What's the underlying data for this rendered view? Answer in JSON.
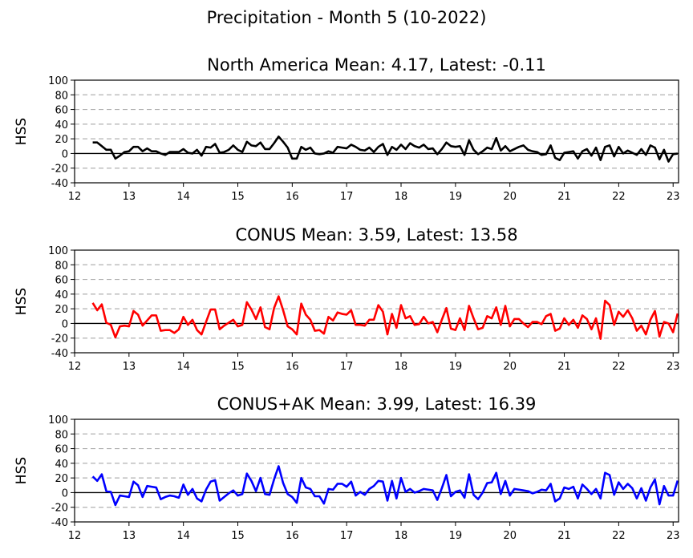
{
  "figure": {
    "title": "Precipitation - Month 5 (10-2022)"
  },
  "chart_data": [
    {
      "type": "line",
      "title": "North America Mean: 4.17, Latest: -0.11",
      "ylabel": "HSS",
      "xlabel": "",
      "xlim": [
        12,
        23.1
      ],
      "ylim": [
        -40,
        100
      ],
      "xticks": [
        "12",
        "13",
        "14",
        "15",
        "16",
        "17",
        "18",
        "19",
        "20",
        "21",
        "22",
        "23"
      ],
      "yticks": [
        "-40",
        "-20",
        "0",
        "20",
        "40",
        "60",
        "80",
        "100"
      ],
      "grid": "horizontal dashed",
      "zero_line": true,
      "color": "#000000",
      "series": [
        {
          "x_start": 12.333,
          "x_step": 0.08333,
          "values": [
            15,
            15,
            10,
            5,
            5,
            -7,
            -3,
            2,
            3,
            9,
            9,
            3,
            7,
            3,
            3,
            0,
            -2,
            2,
            2,
            2,
            6,
            1,
            0,
            5,
            -3,
            9,
            8,
            13,
            1,
            2,
            5,
            11,
            5,
            2,
            16,
            11,
            10,
            15,
            6,
            6,
            14,
            23,
            16,
            8,
            -7,
            -7,
            9,
            5,
            8,
            0,
            -1,
            0,
            3,
            1,
            9,
            8,
            7,
            12,
            9,
            5,
            4,
            8,
            2,
            9,
            13,
            -2,
            9,
            5,
            12,
            6,
            14,
            10,
            8,
            12,
            6,
            7,
            -1,
            6,
            15,
            10,
            9,
            10,
            -2,
            18,
            5,
            -1,
            3,
            8,
            6,
            21,
            4,
            10,
            3,
            6,
            9,
            11,
            5,
            3,
            2,
            -2,
            -1,
            11,
            -6,
            -9,
            1,
            2,
            3,
            -7,
            3,
            6,
            -3,
            8,
            -9,
            9,
            11,
            -4,
            9,
            0,
            4,
            1,
            -2,
            6,
            -2,
            11,
            8,
            -8,
            5,
            -11,
            -1,
            -0.11
          ]
        }
      ]
    },
    {
      "type": "line",
      "title": "CONUS Mean: 3.59, Latest: 13.58",
      "ylabel": "HSS",
      "xlabel": "",
      "xlim": [
        12,
        23.1
      ],
      "ylim": [
        -40,
        100
      ],
      "xticks": [
        "12",
        "13",
        "14",
        "15",
        "16",
        "17",
        "18",
        "19",
        "20",
        "21",
        "22",
        "23"
      ],
      "yticks": [
        "-40",
        "-20",
        "0",
        "20",
        "40",
        "60",
        "80",
        "100"
      ],
      "grid": "horizontal dashed",
      "zero_line": true,
      "color": "#ff0000",
      "series": [
        {
          "x_start": 12.333,
          "x_step": 0.08333,
          "values": [
            28,
            18,
            26,
            1,
            -2,
            -19,
            -4,
            -3,
            -4,
            17,
            12,
            -3,
            4,
            11,
            11,
            -10,
            -9,
            -9,
            -13,
            -8,
            9,
            -2,
            5,
            -9,
            -15,
            2,
            19,
            19,
            -8,
            -3,
            1,
            5,
            -4,
            -2,
            29,
            19,
            6,
            22,
            -5,
            -8,
            21,
            37,
            18,
            -4,
            -8,
            -15,
            27,
            12,
            5,
            -10,
            -9,
            -14,
            9,
            4,
            15,
            13,
            12,
            18,
            -2,
            -2,
            -3,
            5,
            5,
            25,
            16,
            -15,
            13,
            -6,
            25,
            7,
            10,
            -2,
            -1,
            9,
            0,
            2,
            -12,
            5,
            21,
            -7,
            -9,
            7,
            -9,
            24,
            7,
            -8,
            -6,
            10,
            7,
            22,
            -2,
            24,
            -4,
            6,
            6,
            0,
            -5,
            2,
            2,
            -1,
            10,
            13,
            -10,
            -7,
            7,
            -2,
            5,
            -6,
            11,
            6,
            -8,
            7,
            -21,
            31,
            25,
            -2,
            16,
            9,
            18,
            7,
            -10,
            -3,
            -15,
            5,
            17,
            -18,
            2,
            0,
            -12,
            13.58
          ]
        }
      ]
    },
    {
      "type": "line",
      "title": "CONUS+AK Mean: 3.99, Latest: 16.39",
      "ylabel": "HSS",
      "xlabel": "",
      "xlim": [
        12,
        23.1
      ],
      "ylim": [
        -40,
        100
      ],
      "xticks": [
        "12",
        "13",
        "14",
        "15",
        "16",
        "17",
        "18",
        "19",
        "20",
        "21",
        "22",
        "23"
      ],
      "yticks": [
        "-40",
        "-20",
        "0",
        "20",
        "40",
        "60",
        "80",
        "100"
      ],
      "grid": "horizontal dashed",
      "zero_line": true,
      "color": "#0000ff",
      "series": [
        {
          "x_start": 12.333,
          "x_step": 0.08333,
          "values": [
            22,
            16,
            25,
            2,
            1,
            -17,
            -4,
            -5,
            -6,
            15,
            10,
            -6,
            9,
            8,
            7,
            -9,
            -6,
            -4,
            -5,
            -7,
            11,
            -3,
            5,
            -8,
            -12,
            4,
            15,
            17,
            -11,
            -6,
            -1,
            3,
            -4,
            -2,
            26,
            16,
            2,
            20,
            -2,
            -3,
            18,
            36,
            13,
            -2,
            -6,
            -14,
            20,
            7,
            5,
            -5,
            -5,
            -15,
            5,
            4,
            12,
            12,
            8,
            15,
            -4,
            1,
            -3,
            5,
            9,
            16,
            15,
            -11,
            16,
            -8,
            20,
            1,
            5,
            0,
            2,
            5,
            4,
            3,
            -10,
            6,
            24,
            -5,
            1,
            3,
            -7,
            25,
            -3,
            -9,
            0,
            13,
            14,
            27,
            -2,
            16,
            -4,
            5,
            4,
            3,
            2,
            -1,
            1,
            4,
            3,
            12,
            -12,
            -8,
            7,
            5,
            8,
            -8,
            11,
            5,
            -2,
            5,
            -8,
            27,
            24,
            -3,
            14,
            5,
            12,
            6,
            -8,
            6,
            -11,
            7,
            18,
            -16,
            9,
            -4,
            -4,
            16.39
          ]
        }
      ]
    }
  ]
}
